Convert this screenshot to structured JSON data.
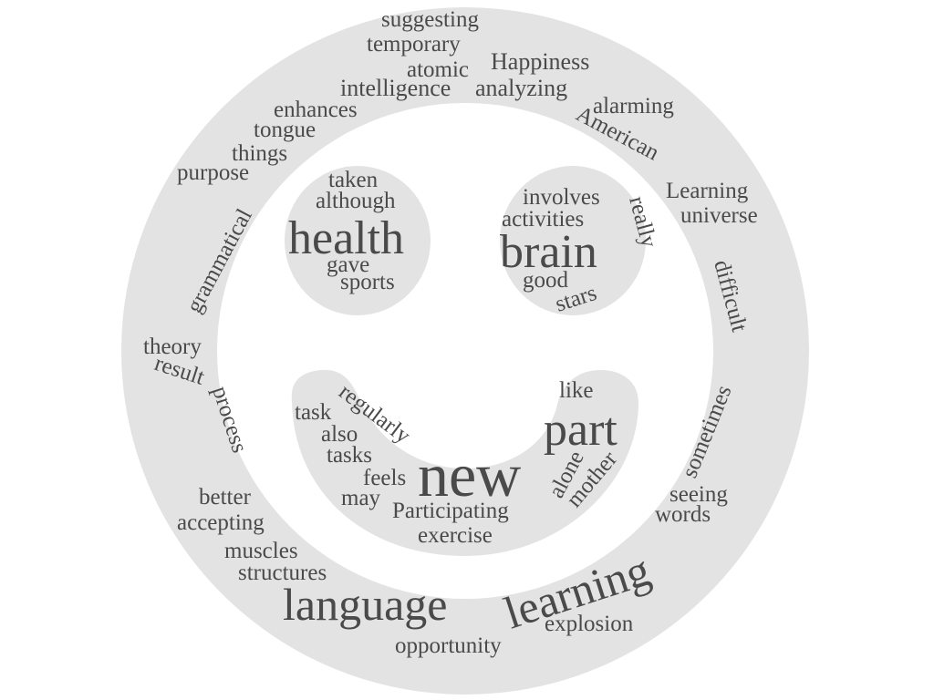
{
  "word_cloud": {
    "shape": "smiley-face",
    "background_color": "#ffffff",
    "shape_color": "#e3e3e3",
    "text_color": "#4a4a4a",
    "words": [
      "suggesting",
      "temporary",
      "atomic",
      "Happiness",
      "intelligence",
      "analyzing",
      "enhances",
      "alarming",
      "tongue",
      "American",
      "things",
      "purpose",
      "grammatical",
      "Learning",
      "universe",
      "taken",
      "although",
      "health",
      "gave",
      "sports",
      "involves",
      "activities",
      "really",
      "brain",
      "good",
      "stars",
      "difficult",
      "theory",
      "result",
      "process",
      "like",
      "task",
      "regularly",
      "also",
      "part",
      "tasks",
      "sometimes",
      "alone",
      "mother",
      "feels",
      "new",
      "may",
      "Participating",
      "seeing",
      "better",
      "words",
      "accepting",
      "exercise",
      "muscles",
      "structures",
      "learning",
      "language",
      "explosion",
      "opportunity"
    ]
  }
}
